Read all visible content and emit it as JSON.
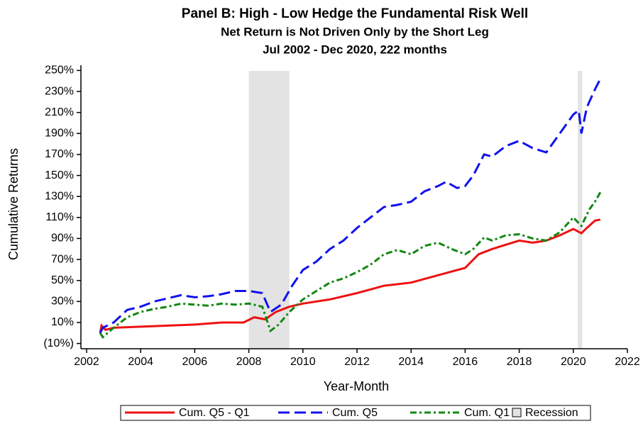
{
  "chart_data": {
    "type": "line",
    "title": "Panel B: High - Low Hedge the Fundamental Risk Well",
    "subtitle": "Net Return is Not Driven Only by the Short Leg",
    "subtitle2": "Jul 2002 - Dec 2020, 222 months",
    "xlabel": "Year-Month",
    "ylabel": "Cumulative Returns",
    "xlim": [
      2002,
      2022
    ],
    "xticks": [
      2002,
      2004,
      2006,
      2008,
      2010,
      2012,
      2014,
      2016,
      2018,
      2020,
      2022
    ],
    "ylim": [
      -15,
      255
    ],
    "yticks": [
      {
        "value": -10,
        "label": "(10%)"
      },
      {
        "value": 10,
        "label": "10%"
      },
      {
        "value": 30,
        "label": "30%"
      },
      {
        "value": 50,
        "label": "50%"
      },
      {
        "value": 70,
        "label": "70%"
      },
      {
        "value": 90,
        "label": "90%"
      },
      {
        "value": 110,
        "label": "110%"
      },
      {
        "value": 130,
        "label": "130%"
      },
      {
        "value": 150,
        "label": "150%"
      },
      {
        "value": 170,
        "label": "170%"
      },
      {
        "value": 190,
        "label": "190%"
      },
      {
        "value": 210,
        "label": "210%"
      },
      {
        "value": 230,
        "label": "230%"
      },
      {
        "value": 250,
        "label": "250%"
      }
    ],
    "recession": {
      "name": "Recession",
      "color": "#e3e3e3",
      "spans": [
        [
          2008.0,
          2009.5
        ],
        [
          2020.17,
          2020.33
        ]
      ]
    },
    "series": [
      {
        "name": "Cum. Q5 - Q1",
        "color": "#ee1111",
        "dash": "solid",
        "x": [
          2002.5,
          2002.55,
          2002.7,
          2003,
          2004,
          2005,
          2006,
          2007,
          2007.8,
          2008.2,
          2008.6,
          2009,
          2009.5,
          2010,
          2011,
          2012,
          2013,
          2014,
          2015,
          2016,
          2016.5,
          2017,
          2017.5,
          2018,
          2018.5,
          2019,
          2019.5,
          2020,
          2020.3,
          2020.5,
          2020.8,
          2021
        ],
        "values": [
          0,
          7,
          3,
          5,
          6,
          7,
          8,
          10,
          10,
          15,
          13,
          20,
          25,
          28,
          32,
          38,
          45,
          48,
          55,
          62,
          75,
          80,
          84,
          88,
          86,
          88,
          93,
          99,
          95,
          100,
          107,
          108
        ]
      },
      {
        "name": "Cum. Q5",
        "color": "#1111ee",
        "dash": "dashed",
        "x": [
          2002.5,
          2002.6,
          2003,
          2003.5,
          2004,
          2004.5,
          2005,
          2005.5,
          2006,
          2006.5,
          2007,
          2007.5,
          2008,
          2008.5,
          2008.8,
          2009.2,
          2009.6,
          2010,
          2010.5,
          2011,
          2011.5,
          2012,
          2012.5,
          2013,
          2013.5,
          2014,
          2014.5,
          2015,
          2015.3,
          2015.7,
          2016,
          2016.3,
          2016.7,
          2017,
          2017.5,
          2018,
          2018.5,
          2019,
          2019.5,
          2020,
          2020.2,
          2020.3,
          2020.5,
          2020.8,
          2021
        ],
        "values": [
          0,
          5,
          10,
          22,
          25,
          30,
          33,
          36,
          34,
          35,
          37,
          40,
          40,
          38,
          20,
          27,
          45,
          60,
          68,
          80,
          88,
          100,
          110,
          120,
          122,
          125,
          135,
          140,
          144,
          138,
          140,
          150,
          170,
          168,
          178,
          183,
          176,
          172,
          190,
          208,
          212,
          190,
          215,
          232,
          242
        ]
      },
      {
        "name": "Cum. Q1",
        "color": "#118811",
        "dash": "dashdot",
        "x": [
          2002.5,
          2002.6,
          2003,
          2003.5,
          2004,
          2004.5,
          2005,
          2005.5,
          2006,
          2006.5,
          2007,
          2007.5,
          2008,
          2008.5,
          2008.8,
          2009.1,
          2009.5,
          2010,
          2010.5,
          2011,
          2011.5,
          2012,
          2012.5,
          2013,
          2013.5,
          2014,
          2014.5,
          2015,
          2015.5,
          2016,
          2016.3,
          2016.7,
          2017,
          2017.5,
          2018,
          2018.5,
          2019,
          2019.5,
          2020,
          2020.3,
          2020.6,
          2020.8,
          2021
        ],
        "values": [
          0,
          -4,
          5,
          15,
          20,
          23,
          25,
          28,
          27,
          26,
          28,
          27,
          28,
          25,
          2,
          8,
          20,
          32,
          40,
          48,
          52,
          58,
          65,
          75,
          79,
          75,
          83,
          86,
          80,
          75,
          80,
          91,
          88,
          93,
          94,
          90,
          88,
          96,
          110,
          102,
          118,
          125,
          134
        ]
      }
    ]
  }
}
